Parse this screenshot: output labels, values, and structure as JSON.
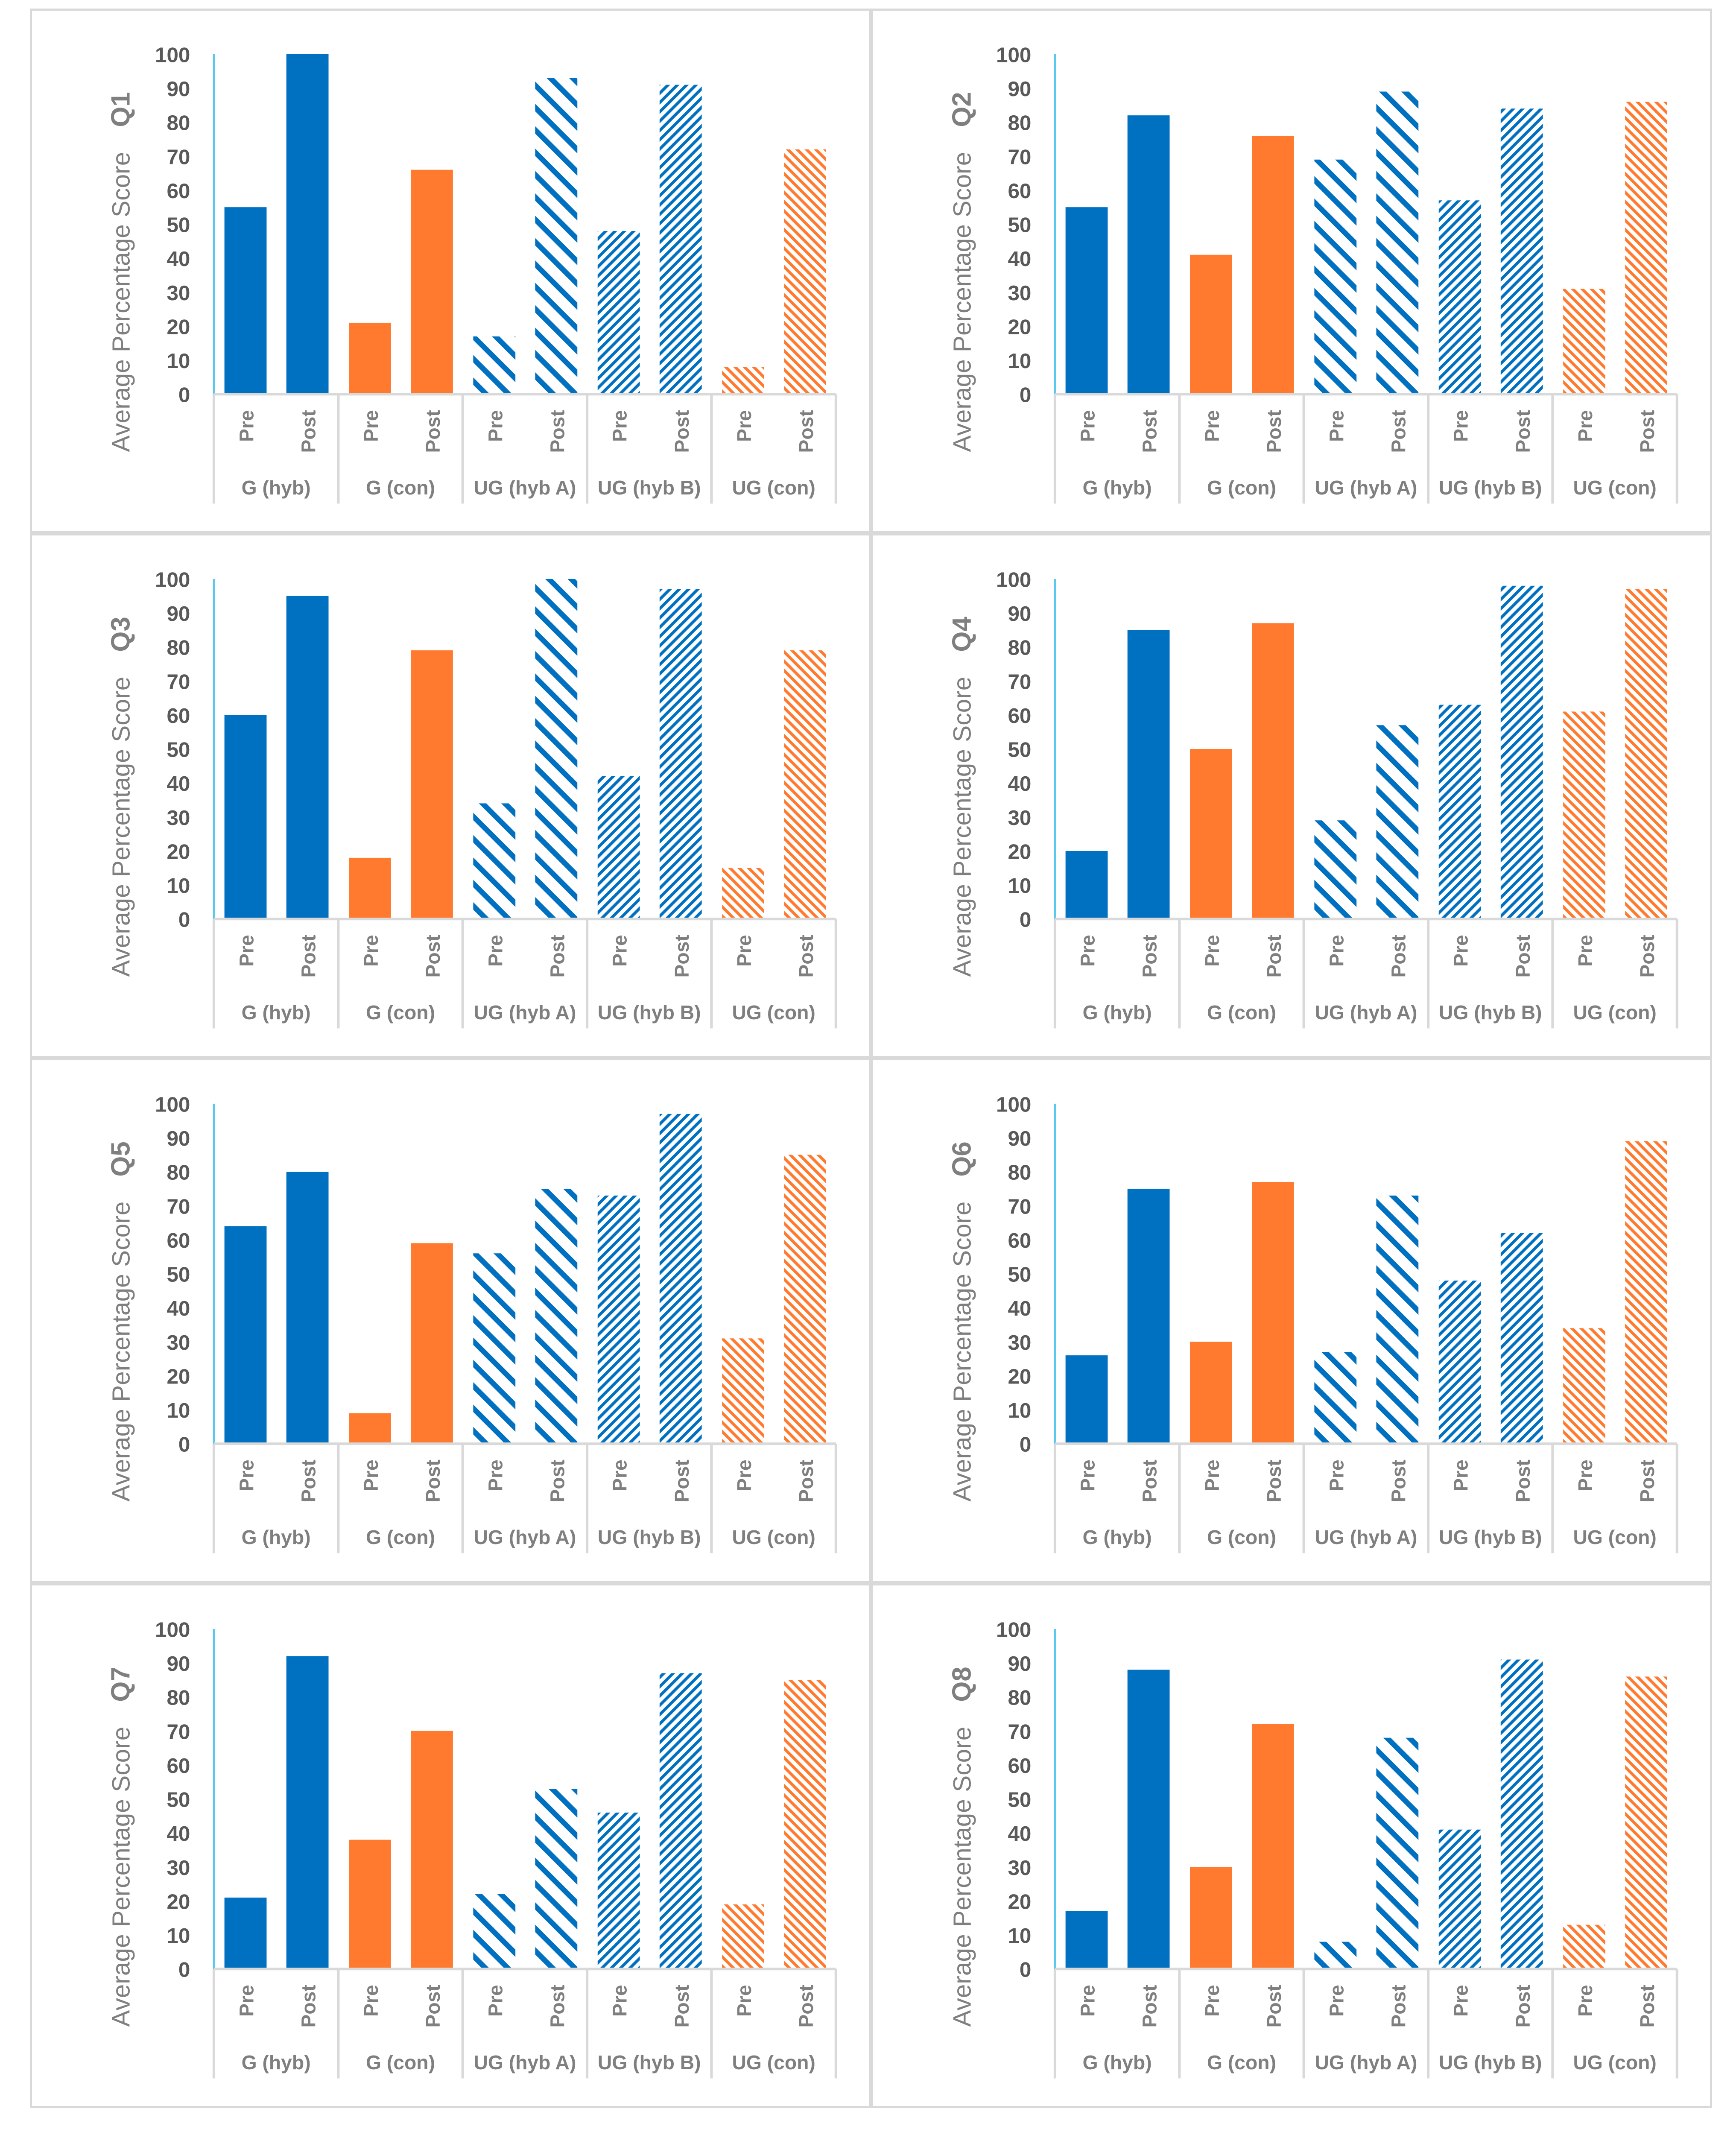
{
  "colors": {
    "blue": "#0070C0",
    "orange": "#FF7A2F",
    "axis": "#d9d9d9",
    "yaxis": "#5bc8f0"
  },
  "chart_data": {
    "type": "bar",
    "ylabel": "Average Percentage Score",
    "ylim": [
      0,
      100
    ],
    "yticks": [
      "0",
      "10",
      "20",
      "30",
      "40",
      "50",
      "60",
      "70",
      "80",
      "90",
      "100"
    ],
    "groups": [
      "G (hyb)",
      "G (con)",
      "UG (hyb A)",
      "UG (hyb B)",
      "UG (con)"
    ],
    "categories": [
      "Pre",
      "Post"
    ],
    "group_styles": [
      "blue-solid",
      "orange-solid",
      "blue-wide-hatch",
      "blue-fine-hatch",
      "orange-fine-hatch"
    ],
    "charts": [
      {
        "title": "Q1",
        "values": [
          55,
          100,
          21,
          66,
          17,
          93,
          48,
          91,
          8,
          72
        ]
      },
      {
        "title": "Q2",
        "values": [
          55,
          82,
          41,
          76,
          69,
          89,
          57,
          84,
          31,
          86
        ]
      },
      {
        "title": "Q3",
        "values": [
          60,
          95,
          18,
          79,
          34,
          100,
          42,
          97,
          15,
          79
        ]
      },
      {
        "title": "Q4",
        "values": [
          20,
          85,
          50,
          87,
          29,
          57,
          63,
          98,
          61,
          97
        ]
      },
      {
        "title": "Q5",
        "values": [
          64,
          80,
          9,
          59,
          56,
          75,
          73,
          97,
          31,
          85
        ]
      },
      {
        "title": "Q6",
        "values": [
          26,
          75,
          30,
          77,
          27,
          73,
          48,
          62,
          34,
          89
        ]
      },
      {
        "title": "Q7",
        "values": [
          21,
          92,
          38,
          70,
          22,
          53,
          46,
          87,
          19,
          85
        ]
      },
      {
        "title": "Q8",
        "values": [
          17,
          88,
          30,
          72,
          8,
          68,
          41,
          91,
          13,
          86
        ]
      }
    ]
  }
}
